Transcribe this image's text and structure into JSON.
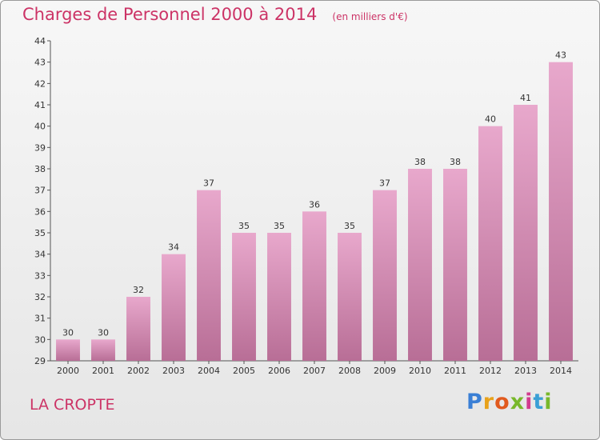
{
  "header": {
    "title": "Charges de Personnel 2000 à 2014",
    "unit": "(en milliers d'€)"
  },
  "footer": {
    "commune": "LA CROPTE",
    "logo_letters": [
      "P",
      "r",
      "o",
      "x",
      "i",
      "t",
      "i"
    ],
    "logo_colors": [
      "#3a7fd5",
      "#e8a21b",
      "#e15a1e",
      "#78b82a",
      "#d23c8f",
      "#3a9fd5",
      "#78b82a"
    ]
  },
  "chart_data": {
    "type": "bar",
    "title": "Charges de Personnel 2000 à 2014",
    "subtitle": "(en milliers d'€)",
    "categories": [
      "2000",
      "2001",
      "2002",
      "2003",
      "2004",
      "2005",
      "2006",
      "2007",
      "2008",
      "2009",
      "2010",
      "2011",
      "2012",
      "2013",
      "2014"
    ],
    "values": [
      30,
      30,
      32,
      34,
      37,
      35,
      35,
      36,
      35,
      37,
      38,
      38,
      40,
      41,
      43
    ],
    "ylim": [
      29,
      44
    ],
    "yticks": [
      29,
      30,
      31,
      32,
      33,
      34,
      35,
      36,
      37,
      38,
      39,
      40,
      41,
      42,
      43,
      44
    ],
    "grid": false,
    "colors": {
      "bar_top": "#e8a8cc",
      "bar_bottom": "#b86e96",
      "axis": "#555555"
    }
  }
}
